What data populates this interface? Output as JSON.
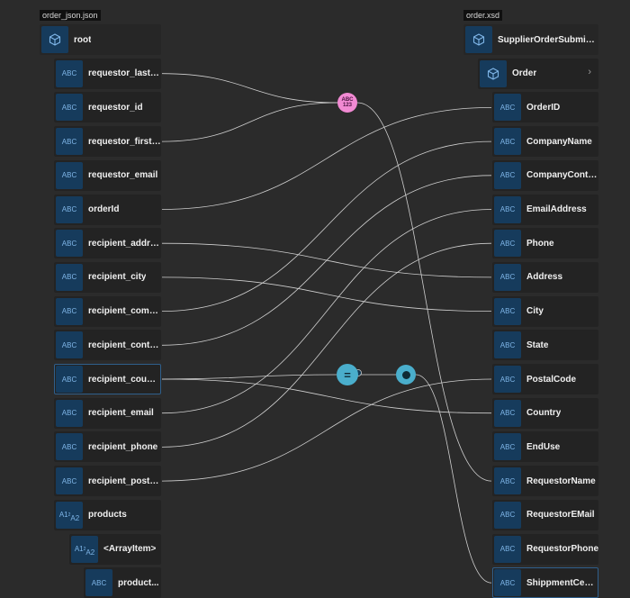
{
  "source_file": "order_json.json",
  "target_file": "order.xsd",
  "source": {
    "root": "root",
    "fields": [
      {
        "label": "requestor_laste..."
      },
      {
        "label": "requestor_id"
      },
      {
        "label": "requestor_firstN..."
      },
      {
        "label": "requestor_email"
      },
      {
        "label": "orderId"
      },
      {
        "label": "recipient_address"
      },
      {
        "label": "recipient_city"
      },
      {
        "label": "recipient_comp..."
      },
      {
        "label": "recipient_conta..."
      },
      {
        "label": "recipient_country"
      },
      {
        "label": "recipient_email"
      },
      {
        "label": "recipient_phone"
      },
      {
        "label": "recipient_post_c..."
      }
    ],
    "array": "products",
    "array_item": "<ArrayItem>",
    "array_child": "product..."
  },
  "target": {
    "root": "SupplierOrderSubmission",
    "group": "Order",
    "fields": [
      {
        "label": "OrderID"
      },
      {
        "label": "CompanyName"
      },
      {
        "label": "CompanyConta..."
      },
      {
        "label": "EmailAddress"
      },
      {
        "label": "Phone"
      },
      {
        "label": "Address"
      },
      {
        "label": "City"
      },
      {
        "label": "State"
      },
      {
        "label": "PostalCode"
      },
      {
        "label": "Country"
      },
      {
        "label": "EndUse"
      },
      {
        "label": "RequestorName"
      },
      {
        "label": "RequestorEMail"
      },
      {
        "label": "RequestorPhone"
      },
      {
        "label": "ShippmentCenter"
      }
    ]
  },
  "icons": {
    "string": "ABC",
    "object": "cube-icon",
    "array": "A1 A2",
    "chevron": "chevron-right-icon"
  },
  "functions": {
    "concat_label": "ABC\n123",
    "concat_color": "#f28ad3",
    "equals_color": "#4aaecc",
    "condition_color": "#4aaecc"
  },
  "colors": {
    "background": "#2b2b2b",
    "node": "#232323",
    "icon_bg": "#163b5c",
    "icon_fg": "#7fb6e8",
    "wire": "#cfcfcf"
  }
}
